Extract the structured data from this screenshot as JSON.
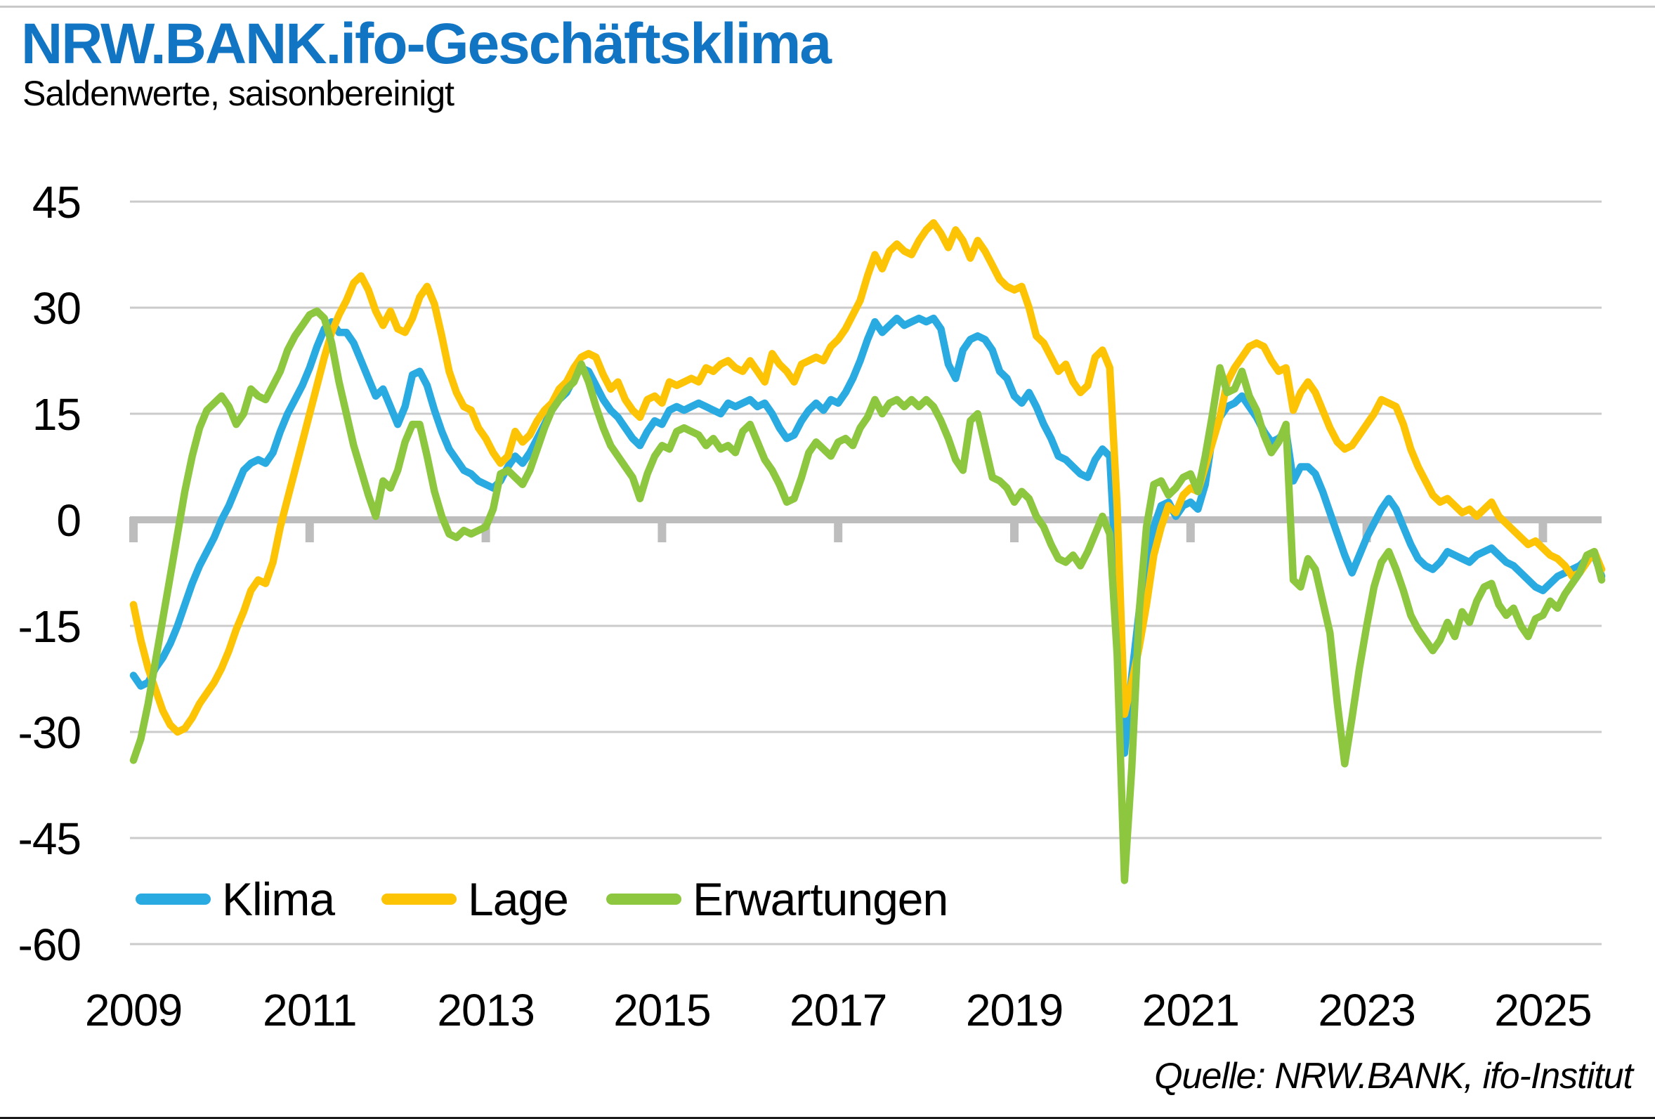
{
  "title": "NRW.BANK.ifo-Geschäftsklima",
  "subtitle": "Saldenwerte, saisonbereinigt",
  "source": "Quelle: NRW.BANK, ifo-Institut",
  "colors": {
    "title": "#1175C3",
    "klima": "#29ABE2",
    "lage": "#FDC405",
    "erwartungen": "#8DC63F",
    "grid": "#CBCBCB",
    "zero_axis": "#BDBDBD",
    "text": "#000000"
  },
  "legend": [
    {
      "id": "klima",
      "label": "Klima",
      "color": "#29ABE2"
    },
    {
      "id": "lage",
      "label": "Lage",
      "color": "#FDC405"
    },
    {
      "id": "erwartungen",
      "label": "Erwartungen",
      "color": "#8DC63F"
    }
  ],
  "chart_data": {
    "type": "line",
    "title": "NRW.BANK.ifo-Geschäftsklima",
    "subtitle": "Saldenwerte, saisonbereinigt",
    "frequency": "monthly",
    "x_start": "2009-01",
    "x_end": "2025-09",
    "x_tick_years": [
      2009,
      2011,
      2013,
      2015,
      2017,
      2019,
      2021,
      2023,
      2025
    ],
    "y_ticks": [
      45,
      30,
      15,
      0,
      -15,
      -30,
      -45,
      -60
    ],
    "ylim": [
      -60,
      45
    ],
    "grid": "horizontal",
    "legend_position": "bottom-left-inside",
    "series": [
      {
        "name": "Klima",
        "color": "#29ABE2",
        "values": [
          -22,
          -23.5,
          -23,
          -21,
          -19.5,
          -17.5,
          -15,
          -12,
          -9,
          -6.5,
          -4.5,
          -2.5,
          0,
          2,
          4.5,
          7,
          8,
          8.5,
          8,
          9.5,
          12.5,
          15,
          17,
          19,
          21.5,
          24.5,
          27,
          28,
          26.5,
          26.5,
          25,
          22.5,
          20,
          17.5,
          18.5,
          16,
          13.5,
          16,
          20.5,
          21,
          19,
          15.5,
          12.5,
          10,
          8.5,
          7,
          6.5,
          5.5,
          5,
          4.5,
          5.5,
          7.5,
          9,
          8,
          9.5,
          11.5,
          13.5,
          15.5,
          17,
          18,
          20,
          21.5,
          21,
          19,
          17,
          15.5,
          14.5,
          13,
          11.5,
          10.5,
          12.5,
          14,
          13.5,
          15.5,
          16,
          15.5,
          16,
          16.5,
          16,
          15.5,
          15,
          16.5,
          16,
          16.5,
          17,
          16,
          16.5,
          15,
          13,
          11.5,
          12,
          14,
          15.5,
          16.5,
          15.5,
          17,
          16.5,
          18,
          20,
          22.5,
          25.5,
          28,
          26.5,
          27.5,
          28.5,
          27.5,
          28,
          28.5,
          28,
          28.5,
          27,
          22,
          20,
          24,
          25.5,
          26,
          25.5,
          24,
          21,
          20,
          17.5,
          16.5,
          18,
          16,
          13.5,
          11.5,
          9,
          8.5,
          7.5,
          6.5,
          6,
          8.5,
          10,
          9,
          -10,
          -33,
          -22,
          -13,
          -5,
          -1,
          2,
          2.5,
          0.5,
          2,
          2.5,
          1.5,
          5,
          12,
          14.5,
          16,
          16.5,
          17.5,
          16,
          14.5,
          12.5,
          11,
          11.5,
          12.5,
          5.5,
          7.5,
          7.5,
          6.5,
          4,
          1,
          -2,
          -5,
          -7.5,
          -5,
          -2.5,
          -0.5,
          1.5,
          3,
          1.5,
          -1,
          -3.5,
          -5.5,
          -6.5,
          -7,
          -6,
          -4.5,
          -5,
          -5.5,
          -6,
          -5,
          -4.5,
          -4,
          -5,
          -6,
          -6.5,
          -7.5,
          -8.5,
          -9.5,
          -10,
          -9,
          -8,
          -7.5,
          -7,
          -6.5,
          -5.5,
          -5,
          -8
        ]
      },
      {
        "name": "Lage",
        "color": "#FDC405",
        "values": [
          -12,
          -17,
          -21,
          -24,
          -27,
          -29,
          -30,
          -29.5,
          -28,
          -26,
          -24.5,
          -23,
          -21,
          -18.5,
          -15.5,
          -13,
          -10,
          -8.5,
          -9,
          -6,
          -1,
          3,
          7,
          11,
          15,
          19,
          23,
          26.5,
          29,
          31,
          33.5,
          34.5,
          32.5,
          29.5,
          27.5,
          29.5,
          27,
          26.5,
          28.5,
          31.5,
          33,
          30.5,
          26,
          21,
          18,
          16,
          15.5,
          13,
          11.5,
          9.5,
          8,
          9,
          12.5,
          11,
          12,
          14,
          15.5,
          16.5,
          18.5,
          19.5,
          21.5,
          23,
          23.5,
          23,
          20.5,
          18.5,
          19.5,
          17,
          15.5,
          14.5,
          17,
          17.5,
          16.5,
          19.5,
          19,
          19.5,
          20,
          19.5,
          21.5,
          21,
          22,
          22.5,
          21.5,
          21,
          22.5,
          21,
          19.5,
          23.5,
          22,
          21,
          19.5,
          22,
          22.5,
          23,
          22.5,
          24.5,
          25.5,
          27,
          29,
          31,
          34.5,
          37.5,
          35.5,
          38,
          39,
          38,
          37.5,
          39.5,
          41,
          42,
          40.5,
          38.5,
          41,
          39.5,
          37,
          39.5,
          38,
          36,
          34,
          33,
          32.5,
          33,
          30,
          26,
          25,
          23,
          21,
          22,
          19.5,
          18,
          19,
          23,
          24,
          21.5,
          2,
          -27.5,
          -23,
          -18,
          -12,
          -5,
          -1,
          2,
          1,
          3.5,
          4.5,
          4,
          7.5,
          11,
          14.5,
          19.5,
          21.5,
          23,
          24.5,
          25,
          24.5,
          22.5,
          21,
          21.5,
          15.5,
          18,
          19.5,
          18,
          15.5,
          13,
          11,
          10,
          10.5,
          12,
          13.5,
          15,
          17,
          16.5,
          16,
          13.5,
          10,
          7.5,
          5.5,
          3.5,
          2.5,
          3,
          2,
          1,
          1.5,
          0.5,
          1.5,
          2.5,
          0.5,
          -0.5,
          -1.5,
          -2.5,
          -3.5,
          -3,
          -4,
          -5,
          -5.5,
          -6.5,
          -8,
          -7.5,
          -6,
          -4.5,
          -7
        ]
      },
      {
        "name": "Erwartungen",
        "color": "#8DC63F",
        "values": [
          -34,
          -31,
          -26,
          -20,
          -14,
          -8,
          -2,
          4,
          9,
          13,
          15.5,
          16.5,
          17.5,
          16,
          13.5,
          15,
          18.5,
          17.5,
          17,
          19,
          21,
          24,
          26,
          27.5,
          29,
          29.5,
          28.5,
          25,
          19.5,
          15,
          10.5,
          7,
          3.5,
          0.5,
          5.5,
          4.5,
          7,
          11,
          13.5,
          13.5,
          9,
          4,
          0.5,
          -2,
          -2.5,
          -1.5,
          -2,
          -1.5,
          -1,
          1.5,
          6.5,
          7,
          6,
          5,
          7,
          10,
          13,
          15.5,
          17,
          18.5,
          19.5,
          22,
          19.5,
          16,
          13,
          10.5,
          9,
          7.5,
          6,
          3,
          6.5,
          9,
          10.5,
          10,
          12.5,
          13,
          12.5,
          12,
          10.5,
          11.5,
          10,
          10.5,
          9.5,
          12.5,
          13.5,
          11,
          8.5,
          7,
          5,
          2.5,
          3,
          6,
          9.5,
          11,
          10,
          9,
          11,
          11.5,
          10.5,
          13,
          14.5,
          17,
          15,
          16.5,
          17,
          16,
          17,
          16,
          17,
          16,
          14,
          11.5,
          8.5,
          7,
          14,
          15,
          10.5,
          6,
          5.5,
          4.5,
          2.5,
          4,
          3,
          0.5,
          -1,
          -3.5,
          -5.5,
          -6,
          -5,
          -6.5,
          -4.5,
          -2,
          0.5,
          -2,
          -19,
          -51,
          -35,
          -13,
          -1,
          5,
          5.5,
          3.5,
          4.5,
          6,
          6.5,
          4,
          9,
          15,
          21.5,
          18,
          18.5,
          21,
          17.5,
          15.5,
          12,
          9.5,
          11,
          13.5,
          -8.5,
          -9.5,
          -5.5,
          -7,
          -11.5,
          -16,
          -26,
          -34.5,
          -28,
          -21,
          -15,
          -9.5,
          -6,
          -4.5,
          -7,
          -10,
          -13.5,
          -15.5,
          -17,
          -18.5,
          -17,
          -14.5,
          -16.5,
          -13,
          -14.5,
          -11.5,
          -9.5,
          -9,
          -12,
          -13.5,
          -12.5,
          -15,
          -16.5,
          -14,
          -13.5,
          -11.5,
          -12.5,
          -10.5,
          -9,
          -7.5,
          -5,
          -4.5,
          -8.5
        ]
      }
    ]
  }
}
